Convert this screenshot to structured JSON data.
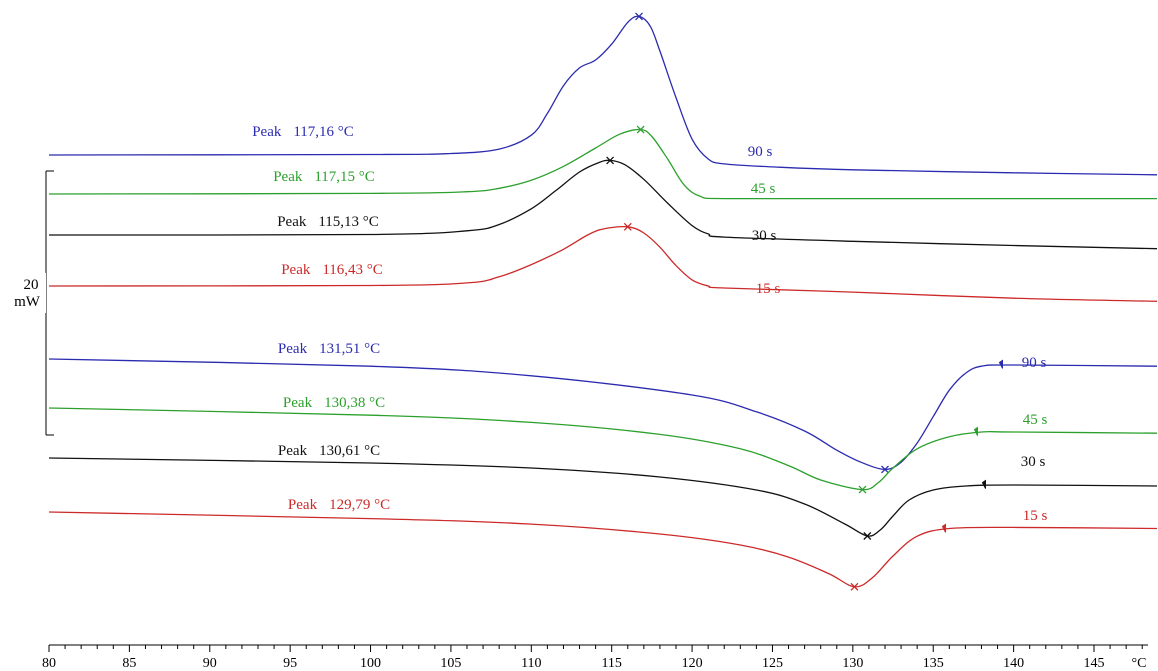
{
  "chart_data": {
    "type": "line",
    "title": "",
    "xlabel": "",
    "ylabel": "",
    "x_unit": "°C",
    "xlim": [
      80,
      150
    ],
    "x_major_ticks": [
      80,
      85,
      90,
      95,
      100,
      105,
      110,
      115,
      120,
      125,
      130,
      135,
      140,
      145
    ],
    "x_minor_step": 1,
    "grid": false,
    "legend": "none",
    "scale_bar": {
      "value": "20",
      "unit": "mW"
    },
    "series": [
      {
        "name": "90 s",
        "group": "crystallization",
        "color": "#2b2bb0",
        "peak_label": "Peak",
        "peak_value": "117,16 °C",
        "peak_x": 116.7,
        "points": [
          [
            80,
            0.0
          ],
          [
            100,
            0.05
          ],
          [
            105,
            0.15
          ],
          [
            108,
            0.6
          ],
          [
            110,
            2.0
          ],
          [
            111,
            4.2
          ],
          [
            112,
            7.0
          ],
          [
            113,
            8.8
          ],
          [
            114,
            9.6
          ],
          [
            115,
            11.2
          ],
          [
            116,
            13.4
          ],
          [
            116.7,
            14.0
          ],
          [
            117.4,
            13.0
          ],
          [
            118,
            10.5
          ],
          [
            119,
            5.8
          ],
          [
            120,
            1.6
          ],
          [
            121,
            -0.4
          ],
          [
            122,
            -0.9
          ],
          [
            125,
            -1.2
          ],
          [
            130,
            -1.5
          ],
          [
            140,
            -1.8
          ],
          [
            150,
            -2.0
          ]
        ]
      },
      {
        "name": "45 s",
        "group": "crystallization",
        "color": "#2ca02c",
        "peak_label": "Peak",
        "peak_value": "117,15 °C",
        "peak_x": 116.8,
        "points": [
          [
            80,
            0.0
          ],
          [
            100,
            0.05
          ],
          [
            106,
            0.2
          ],
          [
            108,
            0.5
          ],
          [
            110,
            1.2
          ],
          [
            112,
            2.4
          ],
          [
            114,
            4.0
          ],
          [
            115.5,
            5.2
          ],
          [
            116.8,
            5.6
          ],
          [
            117.5,
            5.0
          ],
          [
            118.5,
            3.0
          ],
          [
            119.5,
            0.8
          ],
          [
            120.5,
            -0.2
          ],
          [
            122,
            -0.4
          ],
          [
            130,
            -0.4
          ],
          [
            140,
            -0.4
          ],
          [
            150,
            -0.4
          ]
        ]
      },
      {
        "name": "30 s",
        "group": "crystallization",
        "color": "#111111",
        "peak_label": "Peak",
        "peak_value": "115,13 °C",
        "peak_x": 114.9,
        "points": [
          [
            80,
            0.0
          ],
          [
            100,
            0.05
          ],
          [
            106,
            0.4
          ],
          [
            108,
            1.0
          ],
          [
            110,
            2.5
          ],
          [
            111.5,
            4.2
          ],
          [
            113,
            6.0
          ],
          [
            114.2,
            6.9
          ],
          [
            114.9,
            7.1
          ],
          [
            115.8,
            6.7
          ],
          [
            117,
            5.3
          ],
          [
            118.5,
            3.0
          ],
          [
            120,
            0.9
          ],
          [
            121,
            0.1
          ],
          [
            122,
            -0.2
          ],
          [
            130,
            -0.6
          ],
          [
            140,
            -1.0
          ],
          [
            150,
            -1.3
          ]
        ]
      },
      {
        "name": "15 s",
        "group": "crystallization",
        "color": "#cc2a2a",
        "peak_label": "Peak",
        "peak_value": "116,43 °C",
        "peak_x": 116.0,
        "points": [
          [
            80,
            0.0
          ],
          [
            100,
            0.05
          ],
          [
            106,
            0.3
          ],
          [
            108,
            0.9
          ],
          [
            110,
            2.1
          ],
          [
            112,
            3.6
          ],
          [
            113.5,
            5.0
          ],
          [
            114.5,
            5.6
          ],
          [
            116,
            5.8
          ],
          [
            117,
            5.2
          ],
          [
            118,
            3.8
          ],
          [
            119,
            2.0
          ],
          [
            120,
            0.6
          ],
          [
            121,
            0.0
          ],
          [
            122,
            -0.2
          ],
          [
            130,
            -0.6
          ],
          [
            140,
            -1.2
          ],
          [
            150,
            -1.5
          ]
        ]
      },
      {
        "name": "90 s",
        "group": "melting",
        "color": "#2b2bb0",
        "peak_label": "Peak",
        "peak_value": "131,51 °C",
        "peak_x": 132.0,
        "points": [
          [
            80,
            0.0
          ],
          [
            100,
            -0.6
          ],
          [
            110,
            -1.4
          ],
          [
            120,
            -3.0
          ],
          [
            124,
            -4.4
          ],
          [
            127,
            -6.0
          ],
          [
            129,
            -7.6
          ],
          [
            130.5,
            -8.6
          ],
          [
            132,
            -9.2
          ],
          [
            133,
            -8.6
          ],
          [
            134,
            -7.0
          ],
          [
            135,
            -4.8
          ],
          [
            136,
            -2.6
          ],
          [
            137,
            -1.2
          ],
          [
            138,
            -0.6
          ],
          [
            140,
            -0.5
          ],
          [
            150,
            -0.6
          ]
        ]
      },
      {
        "name": "45 s",
        "group": "melting",
        "color": "#2ca02c",
        "peak_label": "Peak",
        "peak_value": "130,38 °C",
        "peak_x": 130.6,
        "points": [
          [
            80,
            0.0
          ],
          [
            100,
            -0.6
          ],
          [
            110,
            -1.2
          ],
          [
            118,
            -2.2
          ],
          [
            123,
            -3.4
          ],
          [
            126,
            -4.8
          ],
          [
            128,
            -6.0
          ],
          [
            130.6,
            -6.8
          ],
          [
            131.6,
            -6.2
          ],
          [
            132.5,
            -5.0
          ],
          [
            134,
            -3.4
          ],
          [
            136,
            -2.4
          ],
          [
            138,
            -2.0
          ],
          [
            140,
            -2.0
          ],
          [
            150,
            -2.1
          ]
        ]
      },
      {
        "name": "30 s",
        "group": "melting",
        "color": "#111111",
        "peak_label": "Peak",
        "peak_value": "130,61 °C",
        "peak_x": 130.9,
        "points": [
          [
            80,
            0.0
          ],
          [
            100,
            -0.5
          ],
          [
            110,
            -1.0
          ],
          [
            118,
            -1.9
          ],
          [
            124,
            -3.2
          ],
          [
            127,
            -4.6
          ],
          [
            129.5,
            -6.6
          ],
          [
            130.9,
            -7.8
          ],
          [
            131.7,
            -7.2
          ],
          [
            132.5,
            -5.8
          ],
          [
            133.5,
            -4.2
          ],
          [
            135,
            -3.2
          ],
          [
            137,
            -2.8
          ],
          [
            140,
            -2.7
          ],
          [
            150,
            -2.8
          ]
        ]
      },
      {
        "name": "15 s",
        "group": "melting",
        "color": "#cc2a2a",
        "peak_label": "Peak",
        "peak_value": "129,79 °C",
        "peak_x": 130.1,
        "points": [
          [
            80,
            0.0
          ],
          [
            100,
            -0.6
          ],
          [
            110,
            -1.1
          ],
          [
            118,
            -2.0
          ],
          [
            123,
            -3.0
          ],
          [
            126,
            -4.1
          ],
          [
            128.5,
            -5.6
          ],
          [
            130.1,
            -6.8
          ],
          [
            131.2,
            -6.0
          ],
          [
            132.5,
            -4.0
          ],
          [
            134,
            -2.2
          ],
          [
            136,
            -1.5
          ],
          [
            140,
            -1.4
          ],
          [
            150,
            -1.5
          ]
        ]
      }
    ]
  }
}
